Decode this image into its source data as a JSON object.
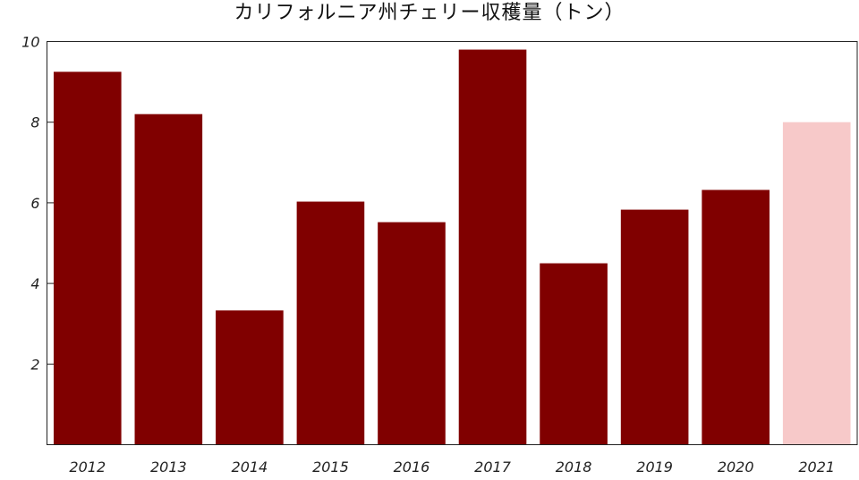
{
  "chart_data": {
    "type": "bar",
    "title": "カリフォルニア州チェリー収穫量（トン）",
    "xlabel": "",
    "ylabel": "",
    "categories": [
      "2012",
      "2013",
      "2014",
      "2015",
      "2016",
      "2017",
      "2018",
      "2019",
      "2020",
      "2021"
    ],
    "values": [
      9.25,
      8.2,
      3.33,
      6.03,
      5.52,
      9.8,
      4.5,
      5.83,
      6.32,
      8.0
    ],
    "bar_colors": [
      "#800000",
      "#800000",
      "#800000",
      "#800000",
      "#800000",
      "#800000",
      "#800000",
      "#800000",
      "#800000",
      "#f7c9c9"
    ],
    "ylim": [
      0,
      10
    ],
    "yticks": [
      2,
      4,
      6,
      8,
      10
    ],
    "grid": false,
    "legend": "none"
  }
}
